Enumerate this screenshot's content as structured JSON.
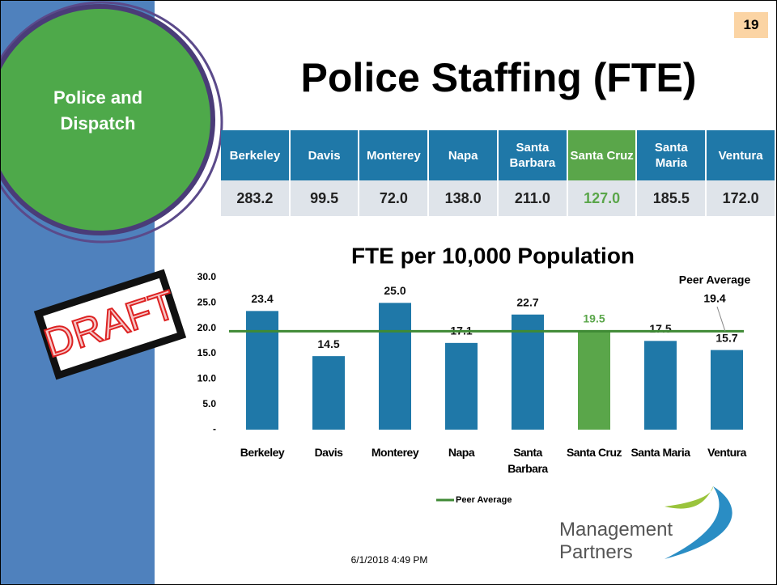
{
  "slide_number": "19",
  "section": "Police and Dispatch",
  "title": "Police Staffing (FTE)",
  "table": {
    "header": [
      "Berkeley",
      "Davis",
      "Monterey",
      "Napa",
      "Santa Barbara",
      "Santa Cruz",
      "Santa Maria",
      "Ventura"
    ],
    "rows": [
      [
        "283.2",
        "99.5",
        "72.0",
        "138.0",
        "211.0",
        "127.0",
        "185.5",
        "172.0"
      ]
    ],
    "highlight_column": 5,
    "highlight_color": "#5aa64a"
  },
  "stamp": "DRAFT",
  "date": "6/1/2018 4:49 PM",
  "logo": [
    "Management",
    "Partners"
  ],
  "chart_data": {
    "type": "bar",
    "title": "FTE per 10,000 Population",
    "categories": [
      "Berkeley",
      "Davis",
      "Monterey",
      "Napa",
      "Santa Barbara",
      "Santa Cruz",
      "Santa Maria",
      "Ventura"
    ],
    "values": [
      23.4,
      14.5,
      25.0,
      17.1,
      22.7,
      19.5,
      17.5,
      15.7
    ],
    "value_labels": [
      "23.4",
      "14.5",
      "25.0",
      "17.1",
      "22.7",
      "19.5",
      "17.5",
      "15.7"
    ],
    "colors": [
      "#1f78a8",
      "#1f78a8",
      "#1f78a8",
      "#1f78a8",
      "#1f78a8",
      "#5aa64a",
      "#1f78a8",
      "#1f78a8"
    ],
    "reference_line": {
      "name": "Peer Average",
      "value": 19.4,
      "color": "#3f8a35"
    },
    "ylim": [
      0,
      30
    ],
    "yticks": [
      {
        "value": 0,
        "label": "-"
      },
      {
        "value": 5,
        "label": "5.0"
      },
      {
        "value": 10,
        "label": "10.0"
      },
      {
        "value": 15,
        "label": "15.0"
      },
      {
        "value": 20,
        "label": "20.0"
      },
      {
        "value": 25,
        "label": "25.0"
      },
      {
        "value": 30,
        "label": "30.0"
      }
    ],
    "legend": "bottom"
  }
}
